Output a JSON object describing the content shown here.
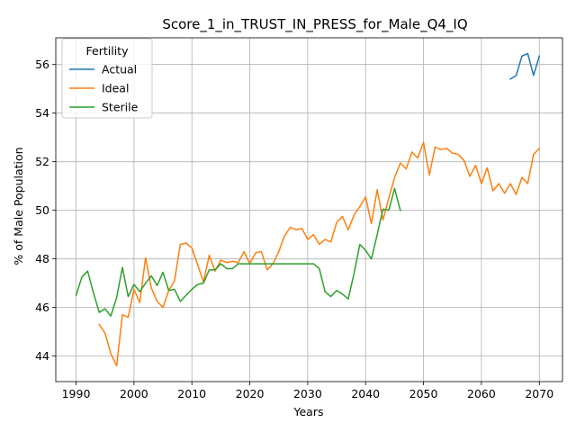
{
  "chart_data": {
    "type": "line",
    "title": "Score_1_in_TRUST_IN_PRESS_for_Male_Q4_IQ",
    "xlabel": "Years",
    "ylabel": "% of Male Population",
    "xlim": [
      1986.5,
      2074
    ],
    "ylim": [
      42.95,
      57.1
    ],
    "xticks": [
      1990,
      2000,
      2010,
      2020,
      2030,
      2040,
      2050,
      2060,
      2070
    ],
    "yticks": [
      44,
      46,
      48,
      50,
      52,
      54,
      56
    ],
    "grid": true,
    "legend": {
      "title": "Fertility",
      "position": "upper-left"
    },
    "series": [
      {
        "name": "Actual",
        "color": "#1f77b4",
        "points": [
          [
            2065,
            55.4
          ],
          [
            2066,
            55.55
          ],
          [
            2067,
            56.35
          ],
          [
            2068,
            56.45
          ],
          [
            2069,
            55.55
          ],
          [
            2070,
            56.35
          ]
        ]
      },
      {
        "name": "Ideal",
        "color": "#ff7f0e",
        "points": [
          [
            1994,
            45.3
          ],
          [
            1995,
            44.95
          ],
          [
            1996,
            44.1
          ],
          [
            1997,
            43.6
          ],
          [
            1998,
            45.7
          ],
          [
            1999,
            45.6
          ],
          [
            2000,
            46.75
          ],
          [
            2001,
            46.2
          ],
          [
            2002,
            48.05
          ],
          [
            2003,
            46.8
          ],
          [
            2004,
            46.25
          ],
          [
            2005,
            46.0
          ],
          [
            2006,
            46.7
          ],
          [
            2007,
            47.1
          ],
          [
            2008,
            48.6
          ],
          [
            2009,
            48.65
          ],
          [
            2010,
            48.45
          ],
          [
            2011,
            47.75
          ],
          [
            2012,
            47.05
          ],
          [
            2013,
            48.15
          ],
          [
            2014,
            47.5
          ],
          [
            2015,
            47.95
          ],
          [
            2016,
            47.85
          ],
          [
            2017,
            47.9
          ],
          [
            2018,
            47.85
          ],
          [
            2019,
            48.3
          ],
          [
            2020,
            47.8
          ],
          [
            2021,
            48.25
          ],
          [
            2022,
            48.3
          ],
          [
            2023,
            47.55
          ],
          [
            2024,
            47.8
          ],
          [
            2025,
            48.3
          ],
          [
            2026,
            48.95
          ],
          [
            2027,
            49.3
          ],
          [
            2028,
            49.2
          ],
          [
            2029,
            49.25
          ],
          [
            2030,
            48.8
          ],
          [
            2031,
            49.0
          ],
          [
            2032,
            48.6
          ],
          [
            2033,
            48.8
          ],
          [
            2034,
            48.7
          ],
          [
            2035,
            49.5
          ],
          [
            2036,
            49.75
          ],
          [
            2037,
            49.2
          ],
          [
            2038,
            49.8
          ],
          [
            2039,
            50.15
          ],
          [
            2040,
            50.55
          ],
          [
            2041,
            49.45
          ],
          [
            2042,
            50.85
          ],
          [
            2043,
            49.6
          ],
          [
            2044,
            50.5
          ],
          [
            2045,
            51.35
          ],
          [
            2046,
            51.95
          ],
          [
            2047,
            51.7
          ],
          [
            2048,
            52.4
          ],
          [
            2049,
            52.15
          ],
          [
            2050,
            52.8
          ],
          [
            2051,
            51.45
          ],
          [
            2052,
            52.6
          ],
          [
            2053,
            52.5
          ],
          [
            2054,
            52.55
          ],
          [
            2055,
            52.35
          ],
          [
            2056,
            52.3
          ],
          [
            2057,
            52.05
          ],
          [
            2058,
            51.4
          ],
          [
            2059,
            51.85
          ],
          [
            2060,
            51.1
          ],
          [
            2061,
            51.75
          ],
          [
            2062,
            50.8
          ],
          [
            2063,
            51.1
          ],
          [
            2064,
            50.7
          ],
          [
            2065,
            51.1
          ],
          [
            2066,
            50.65
          ],
          [
            2067,
            51.35
          ],
          [
            2068,
            51.1
          ],
          [
            2069,
            52.3
          ],
          [
            2070,
            52.55
          ]
        ]
      },
      {
        "name": "Sterile",
        "color": "#2ca02c",
        "points": [
          [
            1990,
            46.5
          ],
          [
            1991,
            47.25
          ],
          [
            1992,
            47.5
          ],
          [
            1993,
            46.6
          ],
          [
            1994,
            45.8
          ],
          [
            1995,
            45.95
          ],
          [
            1996,
            45.65
          ],
          [
            1997,
            46.4
          ],
          [
            1998,
            47.65
          ],
          [
            1999,
            46.45
          ],
          [
            2000,
            46.95
          ],
          [
            2001,
            46.65
          ],
          [
            2002,
            47.0
          ],
          [
            2003,
            47.3
          ],
          [
            2004,
            46.9
          ],
          [
            2005,
            47.45
          ],
          [
            2006,
            46.7
          ],
          [
            2007,
            46.75
          ],
          [
            2008,
            46.25
          ],
          [
            2009,
            46.5
          ],
          [
            2010,
            46.75
          ],
          [
            2011,
            46.95
          ],
          [
            2012,
            47.0
          ],
          [
            2013,
            47.55
          ],
          [
            2014,
            47.55
          ],
          [
            2015,
            47.8
          ],
          [
            2016,
            47.6
          ],
          [
            2017,
            47.6
          ],
          [
            2018,
            47.8
          ],
          [
            2019,
            47.8
          ],
          [
            2020,
            47.8
          ],
          [
            2021,
            47.8
          ],
          [
            2022,
            47.8
          ],
          [
            2023,
            47.8
          ],
          [
            2024,
            47.8
          ],
          [
            2025,
            47.8
          ],
          [
            2026,
            47.8
          ],
          [
            2027,
            47.8
          ],
          [
            2028,
            47.8
          ],
          [
            2029,
            47.8
          ],
          [
            2030,
            47.8
          ],
          [
            2031,
            47.8
          ],
          [
            2032,
            47.6
          ],
          [
            2033,
            46.65
          ],
          [
            2034,
            46.45
          ],
          [
            2035,
            46.7
          ],
          [
            2036,
            46.55
          ],
          [
            2037,
            46.35
          ],
          [
            2038,
            47.4
          ],
          [
            2039,
            48.6
          ],
          [
            2040,
            48.35
          ],
          [
            2041,
            48.0
          ],
          [
            2042,
            49.0
          ],
          [
            2043,
            50.05
          ],
          [
            2044,
            50.0
          ],
          [
            2045,
            50.9
          ],
          [
            2046,
            50.0
          ]
        ]
      }
    ]
  }
}
